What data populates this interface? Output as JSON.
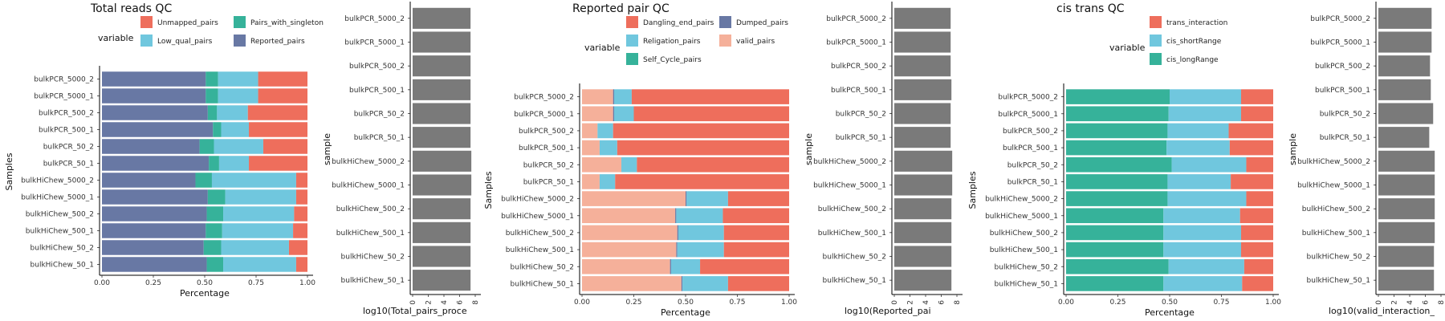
{
  "samples": [
    "bulkPCR_5000_2",
    "bulkPCR_5000_1",
    "bulkPCR_500_2",
    "bulkPCR_500_1",
    "bulkPCR_50_2",
    "bulkPCR_50_1",
    "bulkHiChew_5000_2",
    "bulkHiChew_5000_1",
    "bulkHiChew_500_2",
    "bulkHiChew_500_1",
    "bulkHiChew_50_2",
    "bulkHiChew_50_1"
  ],
  "colors": {
    "salmon": "#EE6E5C",
    "light_blue": "#70C7DE",
    "teal": "#36B29A",
    "slate": "#6878A4",
    "peach": "#F5B09A",
    "gray_bar": "#7A7A7A"
  },
  "chart_data": [
    {
      "id": "total_reads",
      "type": "bar",
      "orientation": "horizontal",
      "stacked": true,
      "title": "Total reads QC",
      "xlabel": "Percentage",
      "ylabel": "Samples",
      "xlim": [
        0,
        1
      ],
      "xticks": [
        "0.00",
        "0.25",
        "0.50",
        "0.75",
        "1.00"
      ],
      "legend": {
        "title": "variable",
        "position": "top",
        "entries": [
          {
            "label": "Unmapped_pairs",
            "color": "#EE6E5C"
          },
          {
            "label": "Low_qual_pairs",
            "color": "#70C7DE"
          },
          {
            "label": "Pairs_with_singleton",
            "color": "#36B29A"
          },
          {
            "label": "Reported_pairs",
            "color": "#6878A4"
          }
        ]
      },
      "series": [
        {
          "key": "Reported_pairs",
          "color": "#6878A4",
          "values": [
            0.505,
            0.505,
            0.515,
            0.54,
            0.475,
            0.52,
            0.455,
            0.515,
            0.51,
            0.505,
            0.495,
            0.51
          ]
        },
        {
          "key": "Pairs_with_singleton",
          "color": "#36B29A",
          "values": [
            0.06,
            0.06,
            0.045,
            0.04,
            0.07,
            0.05,
            0.08,
            0.085,
            0.08,
            0.08,
            0.085,
            0.08
          ]
        },
        {
          "key": "Low_qual_pairs",
          "color": "#70C7DE",
          "values": [
            0.195,
            0.195,
            0.15,
            0.135,
            0.24,
            0.145,
            0.41,
            0.345,
            0.345,
            0.345,
            0.33,
            0.355
          ]
        },
        {
          "key": "Unmapped_pairs",
          "color": "#EE6E5C",
          "values": [
            0.24,
            0.24,
            0.29,
            0.285,
            0.215,
            0.285,
            0.055,
            0.055,
            0.065,
            0.07,
            0.09,
            0.055
          ]
        }
      ]
    },
    {
      "id": "total_pairs_processed",
      "type": "bar",
      "orientation": "horizontal",
      "xlabel": "log10(Total_pairs_proce",
      "ylabel": "sample",
      "xlim": [
        0,
        8
      ],
      "xticks": [
        "0",
        "2",
        "4",
        "6",
        "8"
      ],
      "color": "#7A7A7A",
      "values": [
        7.4,
        7.4,
        7.4,
        7.4,
        7.4,
        7.4,
        7.5,
        7.5,
        7.4,
        7.4,
        7.4,
        7.4
      ]
    },
    {
      "id": "reported_pair",
      "type": "bar",
      "orientation": "horizontal",
      "stacked": true,
      "title": "Reported pair QC",
      "xlabel": "Percentage",
      "ylabel": "Samples",
      "xlim": [
        0,
        1
      ],
      "xticks": [
        "0.00",
        "0.25",
        "0.50",
        "0.75",
        "1.00"
      ],
      "legend": {
        "title": "variable",
        "position": "top",
        "entries": [
          {
            "label": "Dangling_end_pairs",
            "color": "#EE6E5C"
          },
          {
            "label": "Religation_pairs",
            "color": "#70C7DE"
          },
          {
            "label": "Self_Cycle_pairs",
            "color": "#36B29A"
          },
          {
            "label": "Dumped_pairs",
            "color": "#6878A4"
          },
          {
            "label": "valid_pairs",
            "color": "#F5B09A"
          }
        ]
      },
      "series": [
        {
          "key": "valid_pairs",
          "color": "#F5B09A",
          "values": [
            0.15,
            0.15,
            0.075,
            0.085,
            0.19,
            0.085,
            0.5,
            0.45,
            0.46,
            0.455,
            0.425,
            0.48
          ]
        },
        {
          "key": "Dumped_pairs",
          "color": "#6878A4",
          "values": [
            0.005,
            0.005,
            0.0,
            0.0,
            0.0,
            0.0,
            0.005,
            0.005,
            0.005,
            0.005,
            0.005,
            0.005
          ]
        },
        {
          "key": "Self_Cycle_pairs",
          "color": "#36B29A",
          "values": [
            0.0,
            0.0,
            0.0,
            0.0,
            0.0,
            0.0,
            0.0,
            0.0,
            0.0,
            0.0,
            0.0,
            0.0
          ]
        },
        {
          "key": "Religation_pairs",
          "color": "#70C7DE",
          "values": [
            0.085,
            0.095,
            0.075,
            0.085,
            0.075,
            0.075,
            0.2,
            0.225,
            0.22,
            0.225,
            0.14,
            0.22
          ]
        },
        {
          "key": "Dangling_end_pairs",
          "color": "#EE6E5C",
          "values": [
            0.76,
            0.75,
            0.85,
            0.83,
            0.735,
            0.84,
            0.295,
            0.32,
            0.315,
            0.315,
            0.43,
            0.295
          ]
        }
      ]
    },
    {
      "id": "reported_pairs_log",
      "type": "bar",
      "orientation": "horizontal",
      "xlabel": "log10(Reported_pai",
      "ylabel": "sample",
      "xlim": [
        0,
        8
      ],
      "xticks": [
        "0",
        "2",
        "4",
        "6",
        "8"
      ],
      "color": "#7A7A7A",
      "values": [
        7.2,
        7.2,
        7.2,
        7.3,
        7.2,
        7.2,
        7.4,
        7.4,
        7.3,
        7.3,
        7.3,
        7.3
      ]
    },
    {
      "id": "cis_trans",
      "type": "bar",
      "orientation": "horizontal",
      "stacked": true,
      "title": "cis trans QC",
      "xlabel": "Percentage",
      "ylabel": "Samples",
      "xlim": [
        0,
        1
      ],
      "xticks": [
        "0.00",
        "0.25",
        "0.50",
        "0.75",
        "1.00"
      ],
      "legend": {
        "title": "variable",
        "position": "top",
        "entries": [
          {
            "label": "trans_interaction",
            "color": "#EE6E5C"
          },
          {
            "label": "cis_shortRange",
            "color": "#70C7DE"
          },
          {
            "label": "cis_longRange",
            "color": "#36B29A"
          }
        ]
      },
      "series": [
        {
          "key": "cis_longRange",
          "color": "#36B29A",
          "values": [
            0.5,
            0.495,
            0.49,
            0.485,
            0.51,
            0.49,
            0.49,
            0.47,
            0.47,
            0.47,
            0.495,
            0.47
          ]
        },
        {
          "key": "cis_shortRange",
          "color": "#70C7DE",
          "values": [
            0.345,
            0.35,
            0.295,
            0.305,
            0.36,
            0.305,
            0.38,
            0.37,
            0.375,
            0.375,
            0.365,
            0.38
          ]
        },
        {
          "key": "trans_interaction",
          "color": "#EE6E5C",
          "values": [
            0.155,
            0.155,
            0.215,
            0.21,
            0.13,
            0.205,
            0.13,
            0.16,
            0.155,
            0.155,
            0.14,
            0.15
          ]
        }
      ]
    },
    {
      "id": "valid_interaction_log",
      "type": "bar",
      "orientation": "horizontal",
      "xlabel": "log10(valid_interaction_",
      "ylabel": "sample",
      "xlim": [
        0,
        8
      ],
      "xticks": [
        "0",
        "2",
        "4",
        "6",
        "8"
      ],
      "color": "#7A7A7A",
      "values": [
        6.8,
        6.8,
        6.6,
        6.7,
        7.0,
        6.5,
        7.2,
        7.2,
        7.2,
        7.2,
        7.1,
        7.1
      ]
    }
  ]
}
